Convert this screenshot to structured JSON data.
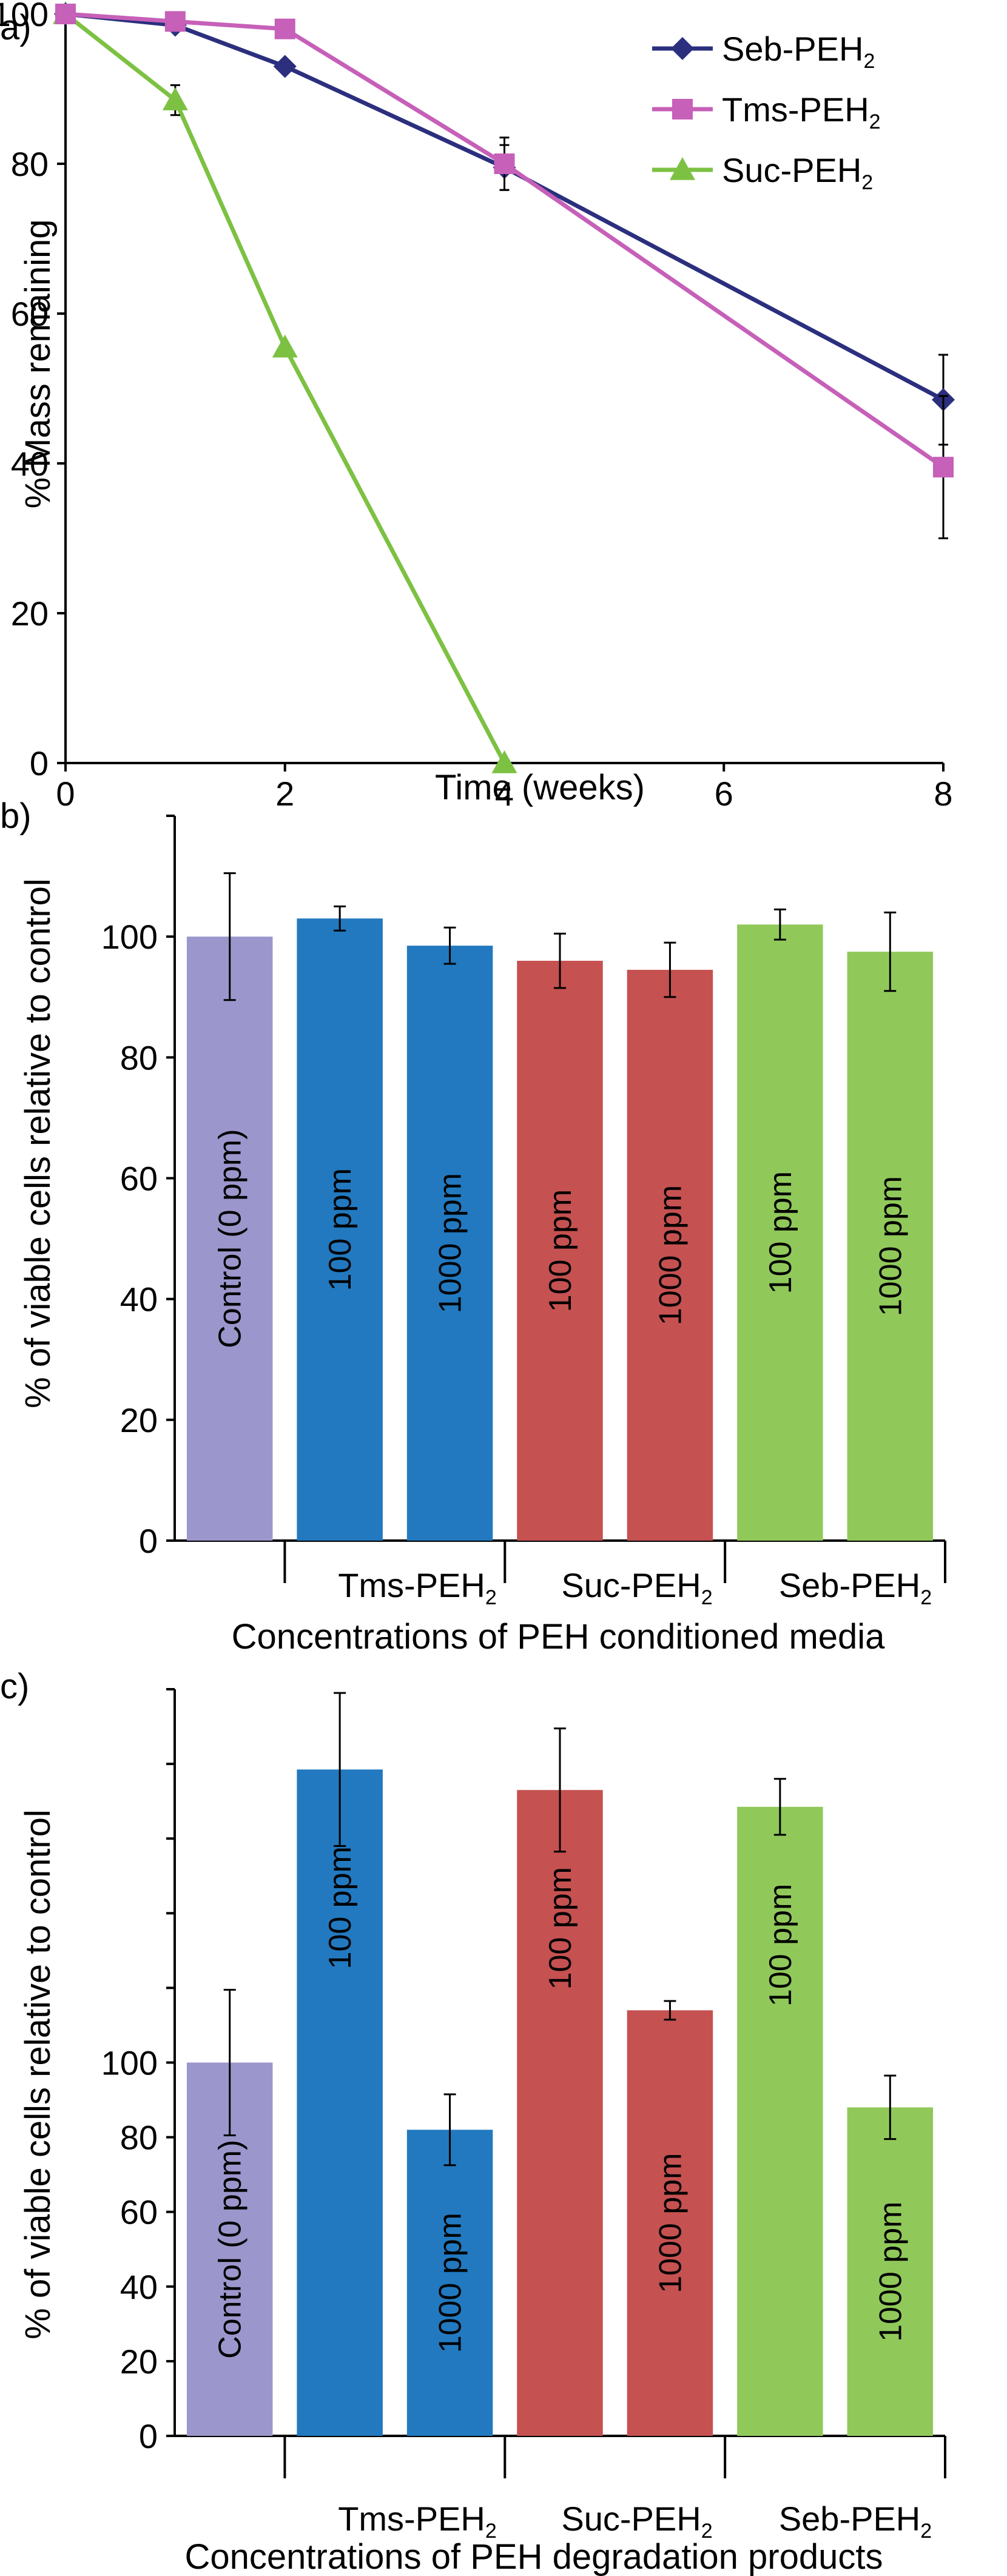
{
  "chart_data": [
    {
      "panel": "a)",
      "type": "line",
      "xlabel": "Time (weeks)",
      "ylabel": "% Mass remaining",
      "xlim": [
        0,
        8
      ],
      "ylim": [
        0,
        100
      ],
      "xticks": [
        "0",
        "2",
        "4",
        "6",
        "8"
      ],
      "yticks": [
        "0",
        "20",
        "40",
        "60",
        "80",
        "100"
      ],
      "legend_position": "top-right",
      "series": [
        {
          "name": "Seb-PEH",
          "subscript": "2",
          "color": "#2b2f7e",
          "marker": "diamond",
          "x": [
            0,
            1,
            2,
            4,
            8
          ],
          "y": [
            100,
            98.5,
            93,
            79.5,
            48.5
          ],
          "err": [
            0,
            0,
            0,
            3,
            6
          ]
        },
        {
          "name": "Tms-PEH",
          "subscript": "2",
          "color": "#c660b8",
          "marker": "square",
          "x": [
            0,
            1,
            2,
            4,
            8
          ],
          "y": [
            100,
            99,
            98,
            80,
            39.5
          ],
          "err": [
            0,
            0,
            0,
            3.5,
            9.5
          ]
        },
        {
          "name": "Suc-PEH",
          "subscript": "2",
          "color": "#7dc143",
          "marker": "triangle",
          "x": [
            0,
            1,
            2,
            4
          ],
          "y": [
            100,
            88.5,
            55.5,
            0
          ],
          "err": [
            0,
            2,
            0,
            0
          ]
        }
      ]
    },
    {
      "panel": "b)",
      "type": "bar",
      "xlabel": "Concentrations of PEH conditioned media",
      "ylabel": "% of viable cells relative to control",
      "ylim": [
        0,
        120
      ],
      "yticks": [
        "0",
        "20",
        "40",
        "60",
        "80",
        "100"
      ],
      "group_labels": [
        {
          "name": "Tms-PEH",
          "subscript": "2"
        },
        {
          "name": "Suc-PEH",
          "subscript": "2"
        },
        {
          "name": "Seb-PEH",
          "subscript": "2"
        }
      ],
      "bars": [
        {
          "label": "Control (0 ppm)",
          "value": 100,
          "err": 10.5,
          "color": "#9b97cc",
          "group": -1
        },
        {
          "label": "100 ppm",
          "value": 103,
          "err": 2,
          "color": "#2279bf",
          "group": 0
        },
        {
          "label": "1000 ppm",
          "value": 98.5,
          "err": 3,
          "color": "#2279bf",
          "group": 0
        },
        {
          "label": "100 ppm",
          "value": 96,
          "err": 4.5,
          "color": "#c55151",
          "group": 1
        },
        {
          "label": "1000 ppm",
          "value": 94.5,
          "err": 4.5,
          "color": "#c55151",
          "group": 1
        },
        {
          "label": "100 ppm",
          "value": 102,
          "err": 2.5,
          "color": "#90c95a",
          "group": 2
        },
        {
          "label": "1000 ppm",
          "value": 97.5,
          "err": 6.5,
          "color": "#90c95a",
          "group": 2
        }
      ]
    },
    {
      "panel": "c)",
      "type": "bar",
      "xlabel": "Concentrations of PEH degradation products",
      "ylabel": "% of viable cells relative to control",
      "ylim": [
        0,
        200
      ],
      "yticks": [
        "0",
        "20",
        "40",
        "60",
        "80",
        "100"
      ],
      "group_labels": [
        {
          "name": "Tms-PEH",
          "subscript": "2"
        },
        {
          "name": "Suc-PEH",
          "subscript": "2"
        },
        {
          "name": "Seb-PEH",
          "subscript": "2"
        }
      ],
      "bars": [
        {
          "label": "Control (0 ppm)",
          "value": 100,
          "err": 19.5,
          "color": "#9b97cc",
          "group": -1
        },
        {
          "label": "100 ppm",
          "value": 178.5,
          "err": 20.5,
          "color": "#2279bf",
          "group": 0
        },
        {
          "label": "1000 ppm",
          "value": 82,
          "err": 9.5,
          "color": "#2279bf",
          "group": 0
        },
        {
          "label": "100 ppm",
          "value": 173,
          "err": 16.5,
          "color": "#c55151",
          "group": 1
        },
        {
          "label": "1000 ppm",
          "value": 114,
          "err": 2.5,
          "color": "#c55151",
          "group": 1
        },
        {
          "label": "100 ppm",
          "value": 168.5,
          "err": 7.5,
          "color": "#90c95a",
          "group": 2
        },
        {
          "label": "1000 ppm",
          "value": 88,
          "err": 8.5,
          "color": "#90c95a",
          "group": 2
        }
      ]
    }
  ]
}
